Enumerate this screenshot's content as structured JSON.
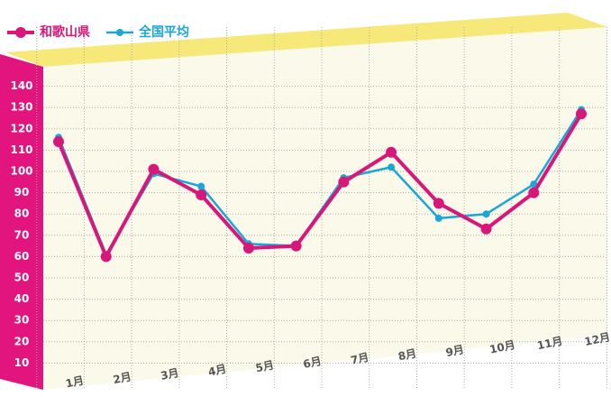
{
  "chart_data": {
    "type": "line",
    "categories": [
      "1月",
      "2月",
      "3月",
      "4月",
      "5月",
      "6月",
      "7月",
      "8月",
      "9月",
      "10月",
      "11月",
      "12月"
    ],
    "series": [
      {
        "name": "和歌山県",
        "color": "#d8177a",
        "values": [
          114,
          60,
          101,
          89,
          64,
          65,
          95,
          109,
          85,
          73,
          90,
          127
        ]
      },
      {
        "name": "全国平均",
        "color": "#1aa6d6",
        "values": [
          116,
          61,
          99,
          93,
          66,
          65,
          97,
          102,
          78,
          80,
          94,
          129
        ]
      }
    ],
    "ylim": [
      0,
      150
    ],
    "yticks": [
      10,
      20,
      30,
      40,
      50,
      60,
      70,
      80,
      90,
      100,
      110,
      120,
      130,
      140
    ],
    "grid": true
  }
}
